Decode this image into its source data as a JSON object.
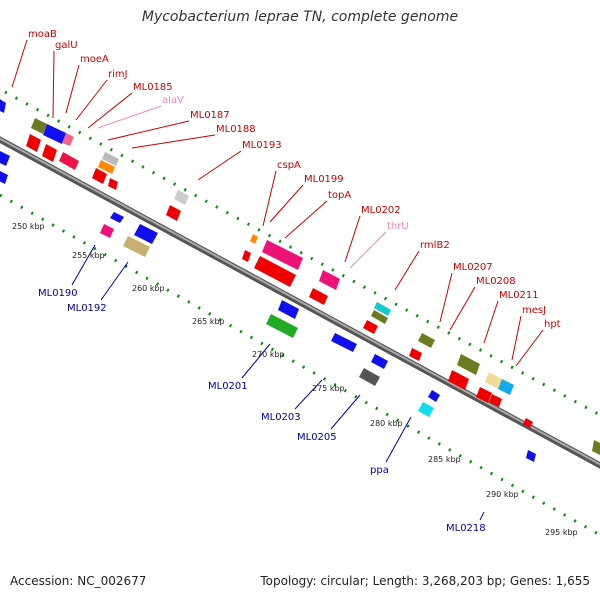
{
  "title": "Mycobacterium leprae TN, complete genome",
  "footer": {
    "accession": "Accession: NC_002677",
    "summary": "Topology: circular; Length: 3,268,203 bp; Genes: 1,655"
  },
  "colors": {
    "forward_label": "#cc0000",
    "reverse_label": "#0000aa",
    "rna_label": "#ee88bb",
    "backbone": "#888888",
    "tick": "#118811"
  },
  "kbp_labels": [
    "250 kbp",
    "255 kbp",
    "260 kbp",
    "265 kbp",
    "270 kbp",
    "275 kbp",
    "280 kbp",
    "285 kbp",
    "290 kbp",
    "295 kbp"
  ],
  "forward_genes": [
    "moaB",
    "galU",
    "moeA",
    "rimJ",
    "ML0185",
    "alaV",
    "ML0187",
    "ML0188",
    "ML0193",
    "cspA",
    "ML0199",
    "topA",
    "ML0202",
    "thrU",
    "rmlB2",
    "ML0207",
    "ML0208",
    "ML0211",
    "mesJ",
    "hpt"
  ],
  "reverse_genes": [
    "ML0190",
    "ML0192",
    "ML0201",
    "ML0203",
    "ML0205",
    "ppa",
    "ML0218"
  ]
}
